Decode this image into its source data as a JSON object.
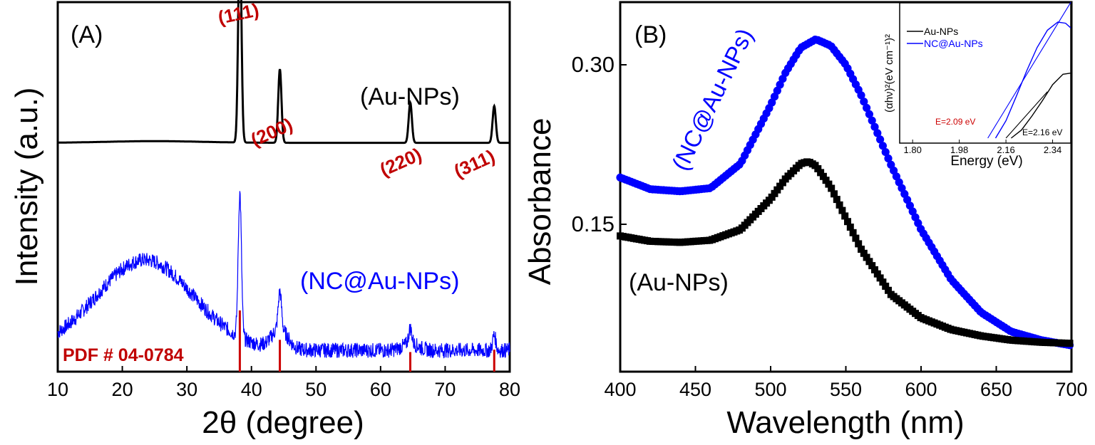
{
  "chart_data": [
    {
      "panel": "(A)",
      "type": "line",
      "xlabel": "2θ (degree)",
      "ylabel": "Intensity (a.u.)",
      "xlim": [
        10,
        80
      ],
      "x_ticks": [
        "10",
        "20",
        "30",
        "40",
        "50",
        "60",
        "70",
        "80"
      ],
      "series": [
        {
          "name": "(Au-NPs)",
          "color": "#000000",
          "baseline": 0.62,
          "hump": [
            25,
            0.005
          ],
          "peaks": [
            {
              "x": 38.2,
              "height": 0.62
            },
            {
              "x": 44.4,
              "height": 0.22
            },
            {
              "x": 64.6,
              "height": 0.12
            },
            {
              "x": 77.6,
              "height": 0.11
            }
          ]
        },
        {
          "name": "(NC@Au-NPs)",
          "color": "#0000ff",
          "baseline": 0.0,
          "hump": [
            23.5,
            0.27
          ],
          "peaks": [
            {
              "x": 38.2,
              "height": 0.43
            },
            {
              "x": 44.4,
              "height": 0.11
            },
            {
              "x": 64.6,
              "height": 0.045
            },
            {
              "x": 77.6,
              "height": 0.045
            }
          ]
        }
      ],
      "reference": {
        "label": "PDF # 04-0784",
        "color": "#cc0000",
        "lines": [
          {
            "x": 38.2,
            "intensity": 100
          },
          {
            "x": 44.4,
            "intensity": 52
          },
          {
            "x": 64.6,
            "intensity": 32
          },
          {
            "x": 77.6,
            "intensity": 36
          }
        ]
      },
      "annotations": [
        {
          "text": "(111)",
          "x": 38.2
        },
        {
          "text": "(200)",
          "x": 44.4
        },
        {
          "text": "(220)",
          "x": 64.6
        },
        {
          "text": "(311)",
          "x": 77.6
        }
      ]
    },
    {
      "panel": "(B)",
      "type": "scatter",
      "xlabel": "Wavelength (nm)",
      "ylabel": "Absorbance",
      "xlim": [
        400,
        700
      ],
      "x_ticks": [
        "400",
        "450",
        "500",
        "550",
        "600",
        "650",
        "700"
      ],
      "y_ticks": [
        {
          "label": "0.15",
          "value": 0.15
        },
        {
          "label": "0.30",
          "value": 0.3
        }
      ],
      "series": [
        {
          "name": "(NC@Au-NPs)",
          "color": "#0000ff",
          "marker": "circle",
          "x": [
            400,
            420,
            440,
            460,
            480,
            500,
            510,
            520,
            530,
            540,
            550,
            560,
            580,
            600,
            620,
            640,
            660,
            680,
            700
          ],
          "y": [
            0.194,
            0.183,
            0.181,
            0.184,
            0.207,
            0.262,
            0.293,
            0.316,
            0.324,
            0.318,
            0.3,
            0.272,
            0.206,
            0.145,
            0.098,
            0.067,
            0.049,
            0.041,
            0.036
          ]
        },
        {
          "name": "(Au-NPs)",
          "color": "#000000",
          "marker": "square",
          "x": [
            400,
            420,
            440,
            460,
            480,
            500,
            510,
            520,
            525,
            530,
            540,
            550,
            560,
            580,
            600,
            620,
            640,
            660,
            680,
            700
          ],
          "y": [
            0.139,
            0.134,
            0.133,
            0.135,
            0.145,
            0.174,
            0.193,
            0.207,
            0.209,
            0.205,
            0.185,
            0.156,
            0.127,
            0.084,
            0.062,
            0.051,
            0.045,
            0.041,
            0.039,
            0.038
          ]
        }
      ],
      "inset": {
        "xlabel": "Energy (eV)",
        "ylabel": "(αhν)²(eV cm⁻¹)²",
        "xlim": [
          1.75,
          2.41
        ],
        "x_ticks": [
          "1.80",
          "1.98",
          "2.16",
          "2.34"
        ],
        "legend": [
          "Au-NPs",
          "NC@Au-NPs"
        ],
        "series": [
          {
            "name": "Au-NPs",
            "color": "#000000",
            "x": [
              2.18,
              2.22,
              2.26,
              2.3,
              2.34,
              2.38,
              2.41
            ],
            "y": [
              0.0,
              0.07,
              0.19,
              0.32,
              0.46,
              0.55,
              0.56
            ]
          },
          {
            "name": "NC@Au-NPs",
            "color": "#0000ff",
            "x": [
              2.12,
              2.16,
              2.2,
              2.24,
              2.28,
              2.32,
              2.36,
              2.39,
              2.41
            ],
            "y": [
              0.0,
              0.15,
              0.36,
              0.58,
              0.78,
              0.93,
              1.0,
              0.99,
              0.95
            ]
          }
        ],
        "tangents": [
          {
            "color": "#000000",
            "from": [
              2.16,
              0.0
            ],
            "to": [
              2.32,
              0.4
            ]
          },
          {
            "color": "#0000ff",
            "from": [
              2.09,
              0.0
            ],
            "to": [
              2.41,
              1.17
            ]
          }
        ],
        "annotations": [
          {
            "text": "E=2.09 eV",
            "color": "#cc0000"
          },
          {
            "text": "E=2.16 eV",
            "color": "#000000"
          }
        ]
      }
    }
  ]
}
